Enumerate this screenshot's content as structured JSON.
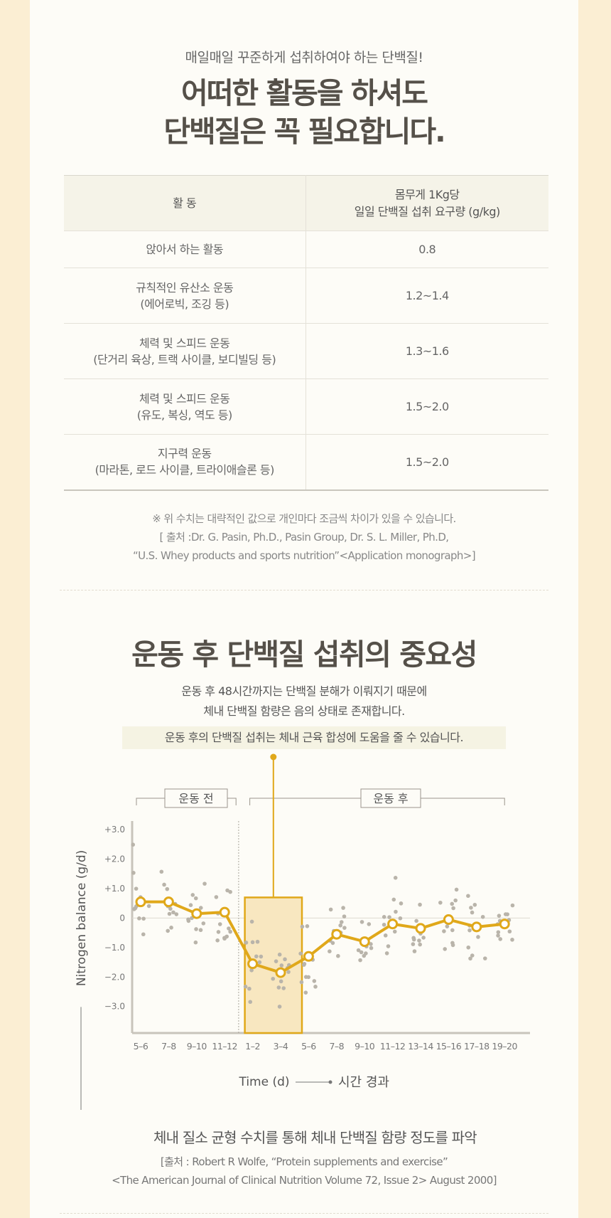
{
  "section1": {
    "subtitle": "매일매일 꾸준하게 섭취하여야 하는 단백질!",
    "title_line1": "어떠한 활동을 하셔도",
    "title_line2": "단백질은 꼭 필요합니다."
  },
  "table": {
    "header_activity": "활   동",
    "header_req_line1": "몸무게 1Kg당",
    "header_req_line2": "일일 단백질 섭취 요구량 (g/kg)",
    "rows": [
      {
        "line1": "앉아서 하는 활동",
        "line2": "",
        "value": "0.8"
      },
      {
        "line1": "규칙적인 유산소 운동",
        "line2": "(에어로빅, 조깅 등)",
        "value": "1.2~1.4"
      },
      {
        "line1": "체력 및 스피드 운동",
        "line2": "(단거리 육상, 트랙 사이클, 보디빌딩 등)",
        "value": "1.3~1.6"
      },
      {
        "line1": "체력 및 스피드 운동",
        "line2": "(유도, 복싱, 역도 등)",
        "value": "1.5~2.0"
      },
      {
        "line1": "지구력 운동",
        "line2": "(마라톤, 로드 사이클, 트라이애슬론 등)",
        "value": "1.5~2.0"
      }
    ]
  },
  "notes": {
    "line1": "※ 위 수치는 대략적인 값으로 개인마다 조금씩 차이가 있을 수 있습니다.",
    "line2": "[ 출처 :Dr. G. Pasin, Ph.D., Pasin Group, Dr. S. L. Miller, Ph.D,",
    "line3": "“U.S. Whey products and sports nutrition”<Application monograph>]"
  },
  "section2": {
    "title": "운동 후 단백질 섭취의 중요성",
    "desc_line1": "운동 후 48시간까지는 단백질 분해가 이뤄지기 때문에",
    "desc_line2": "체내 단백질 함량은 음의 상태로 존재합니다.",
    "highlight": "운동 후의 단백질 섭취는 체내 근육 합성에 도움을 줄 수 있습니다.",
    "bottom_note": "체내 질소 균형 수치를 통해 체내 단백질 함량 정도를 파악",
    "source_line1": "[출처 : Robert R Wolfe, “Protein supplements and exercise”",
    "source_line2": "<The American Journal of Clinical Nutrition Volume 72, Issue 2> August 2000]"
  },
  "chart_data": {
    "type": "line",
    "ylabel": "Nitrogen balance (g/d)",
    "xlabel": "Time (d)",
    "xlabel_note": "시간 경과",
    "group_before": "운동 전",
    "group_after": "운동 후",
    "categories": [
      "5–6",
      "7–8",
      "9–10",
      "11–12",
      "1–2",
      "3–4",
      "5–6",
      "7–8",
      "9–10",
      "11–12",
      "13–14",
      "15–16",
      "17–18",
      "19–20"
    ],
    "y_ticks": [
      "+3.0",
      "+2.0",
      "+1.0",
      "0",
      "−1.0",
      "−2.0",
      "−3.0"
    ],
    "ylim": [
      -3.9,
      3.1
    ],
    "series": [
      {
        "values": [
          0.55,
          0.55,
          0.15,
          0.2,
          -1.55,
          -1.85,
          -1.3,
          -0.55,
          -0.8,
          -0.2,
          -0.35,
          -0.05,
          -0.3,
          -0.2
        ]
      }
    ],
    "highlight_range": [
      "1–2",
      "3–4"
    ],
    "accent_color": "#e0a81a",
    "scatter_color": "#b9b4aa",
    "grid": false,
    "legend": "none"
  }
}
